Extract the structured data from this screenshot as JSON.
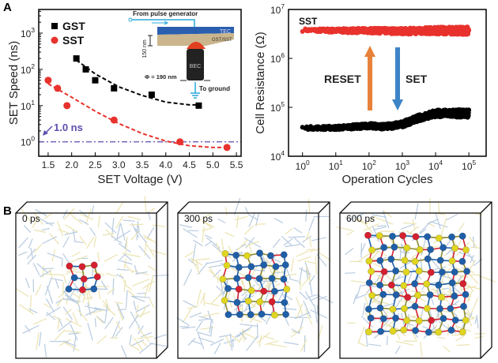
{
  "panel_labels": {
    "a": "A",
    "b": "B"
  },
  "chart_data": [
    {
      "type": "scatter",
      "xlabel": "SET Voltage (V)",
      "ylabel": "SET Speed (ns)",
      "xlim": [
        1.3,
        5.6
      ],
      "ylim": [
        0.4,
        4500
      ],
      "yscale": "log",
      "xticks": [
        "1.5",
        "2.0",
        "2.5",
        "3.0",
        "3.5",
        "4.0",
        "4.5",
        "5.0",
        "5.5"
      ],
      "yticks": [
        "10^0",
        "10^1",
        "10^2",
        "10^3"
      ],
      "legend_position": "top-left",
      "series": [
        {
          "name": "GST",
          "color": "#000000",
          "marker": "square",
          "x": [
            2.1,
            2.3,
            2.5,
            2.9,
            3.7,
            4.7
          ],
          "y": [
            200,
            100,
            50,
            30,
            20,
            10
          ],
          "fit": [
            [
              2.1,
              180
            ],
            [
              2.5,
              75
            ],
            [
              3.0,
              33
            ],
            [
              3.5,
              19
            ],
            [
              4.0,
              12.5
            ],
            [
              4.5,
              10.5
            ],
            [
              4.7,
              10.5
            ]
          ]
        },
        {
          "name": "SST",
          "color": "#e8322d",
          "marker": "circle",
          "x": [
            1.5,
            1.7,
            1.9,
            2.9,
            4.3,
            5.3
          ],
          "y": [
            50,
            30,
            10,
            4,
            1,
            0.7
          ],
          "fit": [
            [
              1.5,
              40
            ],
            [
              2.0,
              17
            ],
            [
              2.5,
              7
            ],
            [
              3.0,
              3.2
            ],
            [
              3.5,
              1.7
            ],
            [
              4.0,
              1.05
            ],
            [
              4.5,
              0.78
            ],
            [
              5.0,
              0.7
            ],
            [
              5.3,
              0.7
            ]
          ]
        }
      ],
      "reference_line": {
        "y": 1,
        "label": "1.0 ns",
        "color": "#5b4fb0"
      },
      "inset": {
        "top_label": "From pulse generator",
        "tec": "TEC",
        "layer": "GST/SST",
        "thickness": "150 nm",
        "bec": "BEC",
        "diameter": "Φ = 190 nm",
        "ground": "To ground"
      }
    },
    {
      "type": "scatter",
      "xlabel": "Operation Cycles",
      "ylabel": "Cell Resistance (Ω)",
      "xscale": "log",
      "yscale": "log",
      "xlim": [
        0.38,
        330000
      ],
      "ylim": [
        10000,
        10000000
      ],
      "xticks": [
        "10^0",
        "10^1",
        "10^2",
        "10^3",
        "10^4",
        "10^5"
      ],
      "yticks": [
        "10^4",
        "10^5",
        "10^6",
        "10^7"
      ],
      "legend": "SST",
      "series": [
        {
          "name": "RESET state",
          "color": "#e8322d",
          "x": [
            1,
            10,
            100,
            1000,
            10000,
            100000
          ],
          "y": [
            3800000,
            3700000,
            3700000,
            3600000,
            3700000,
            3700000
          ]
        },
        {
          "name": "SET state",
          "color": "#000000",
          "x": [
            1,
            10,
            100,
            300,
            1000,
            3000,
            10000,
            100000
          ],
          "y": [
            38000,
            38000,
            42000,
            40000,
            45000,
            60000,
            75000,
            75000
          ]
        }
      ],
      "annotations": {
        "reset": "RESET",
        "set": "SET",
        "reset_color": "#e8823a",
        "set_color": "#3d85c6"
      }
    }
  ],
  "snapshots": [
    {
      "label": "0 ps",
      "order": 0.15
    },
    {
      "label": "300 ps",
      "order": 0.55
    },
    {
      "label": "600 ps",
      "order": 1.0
    }
  ],
  "colors": {
    "sb": "#1f5fa8",
    "te": "#e0d520",
    "sc": "#d42030",
    "bond_bg_blue": "#b8cbe0",
    "bond_bg_yellow": "#ebe3b0"
  }
}
